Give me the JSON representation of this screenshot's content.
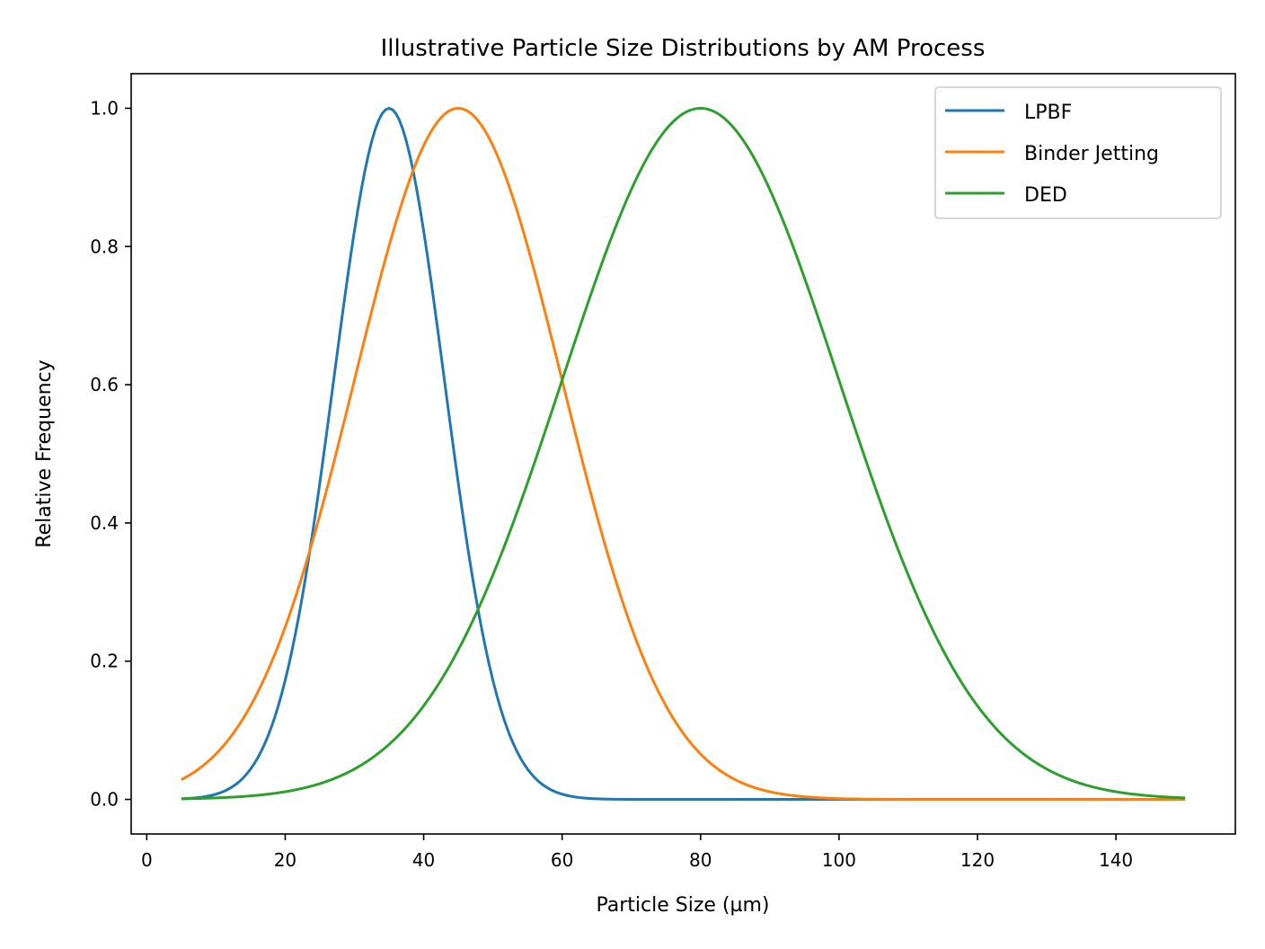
{
  "chart_data": {
    "type": "line",
    "title": "Illustrative Particle Size Distributions by AM Process",
    "xlabel": "Particle Size (µm)",
    "ylabel": "Relative Frequency",
    "xlim": [
      -2.25,
      157.25
    ],
    "ylim": [
      -0.05,
      1.05
    ],
    "x_range": [
      5,
      150
    ],
    "xticks": [
      0,
      20,
      40,
      60,
      80,
      100,
      120,
      140
    ],
    "xtick_labels": [
      "0",
      "20",
      "40",
      "60",
      "80",
      "100",
      "120",
      "140"
    ],
    "yticks": [
      0.0,
      0.2,
      0.4,
      0.6,
      0.8,
      1.0
    ],
    "ytick_labels": [
      "0.0",
      "0.2",
      "0.4",
      "0.6",
      "0.8",
      "1.0"
    ],
    "grid": false,
    "legend_position": "top-right",
    "curve_shape": "normalized gaussian (peak = 1.0)",
    "series": [
      {
        "name": "LPBF",
        "peak_x": 35,
        "sigma": 8,
        "color": "#1f77b4"
      },
      {
        "name": "Binder Jetting",
        "peak_x": 45,
        "sigma": 15,
        "color": "#ff7f0e"
      },
      {
        "name": "DED",
        "peak_x": 80,
        "sigma": 20,
        "color": "#2ca02c"
      }
    ]
  }
}
